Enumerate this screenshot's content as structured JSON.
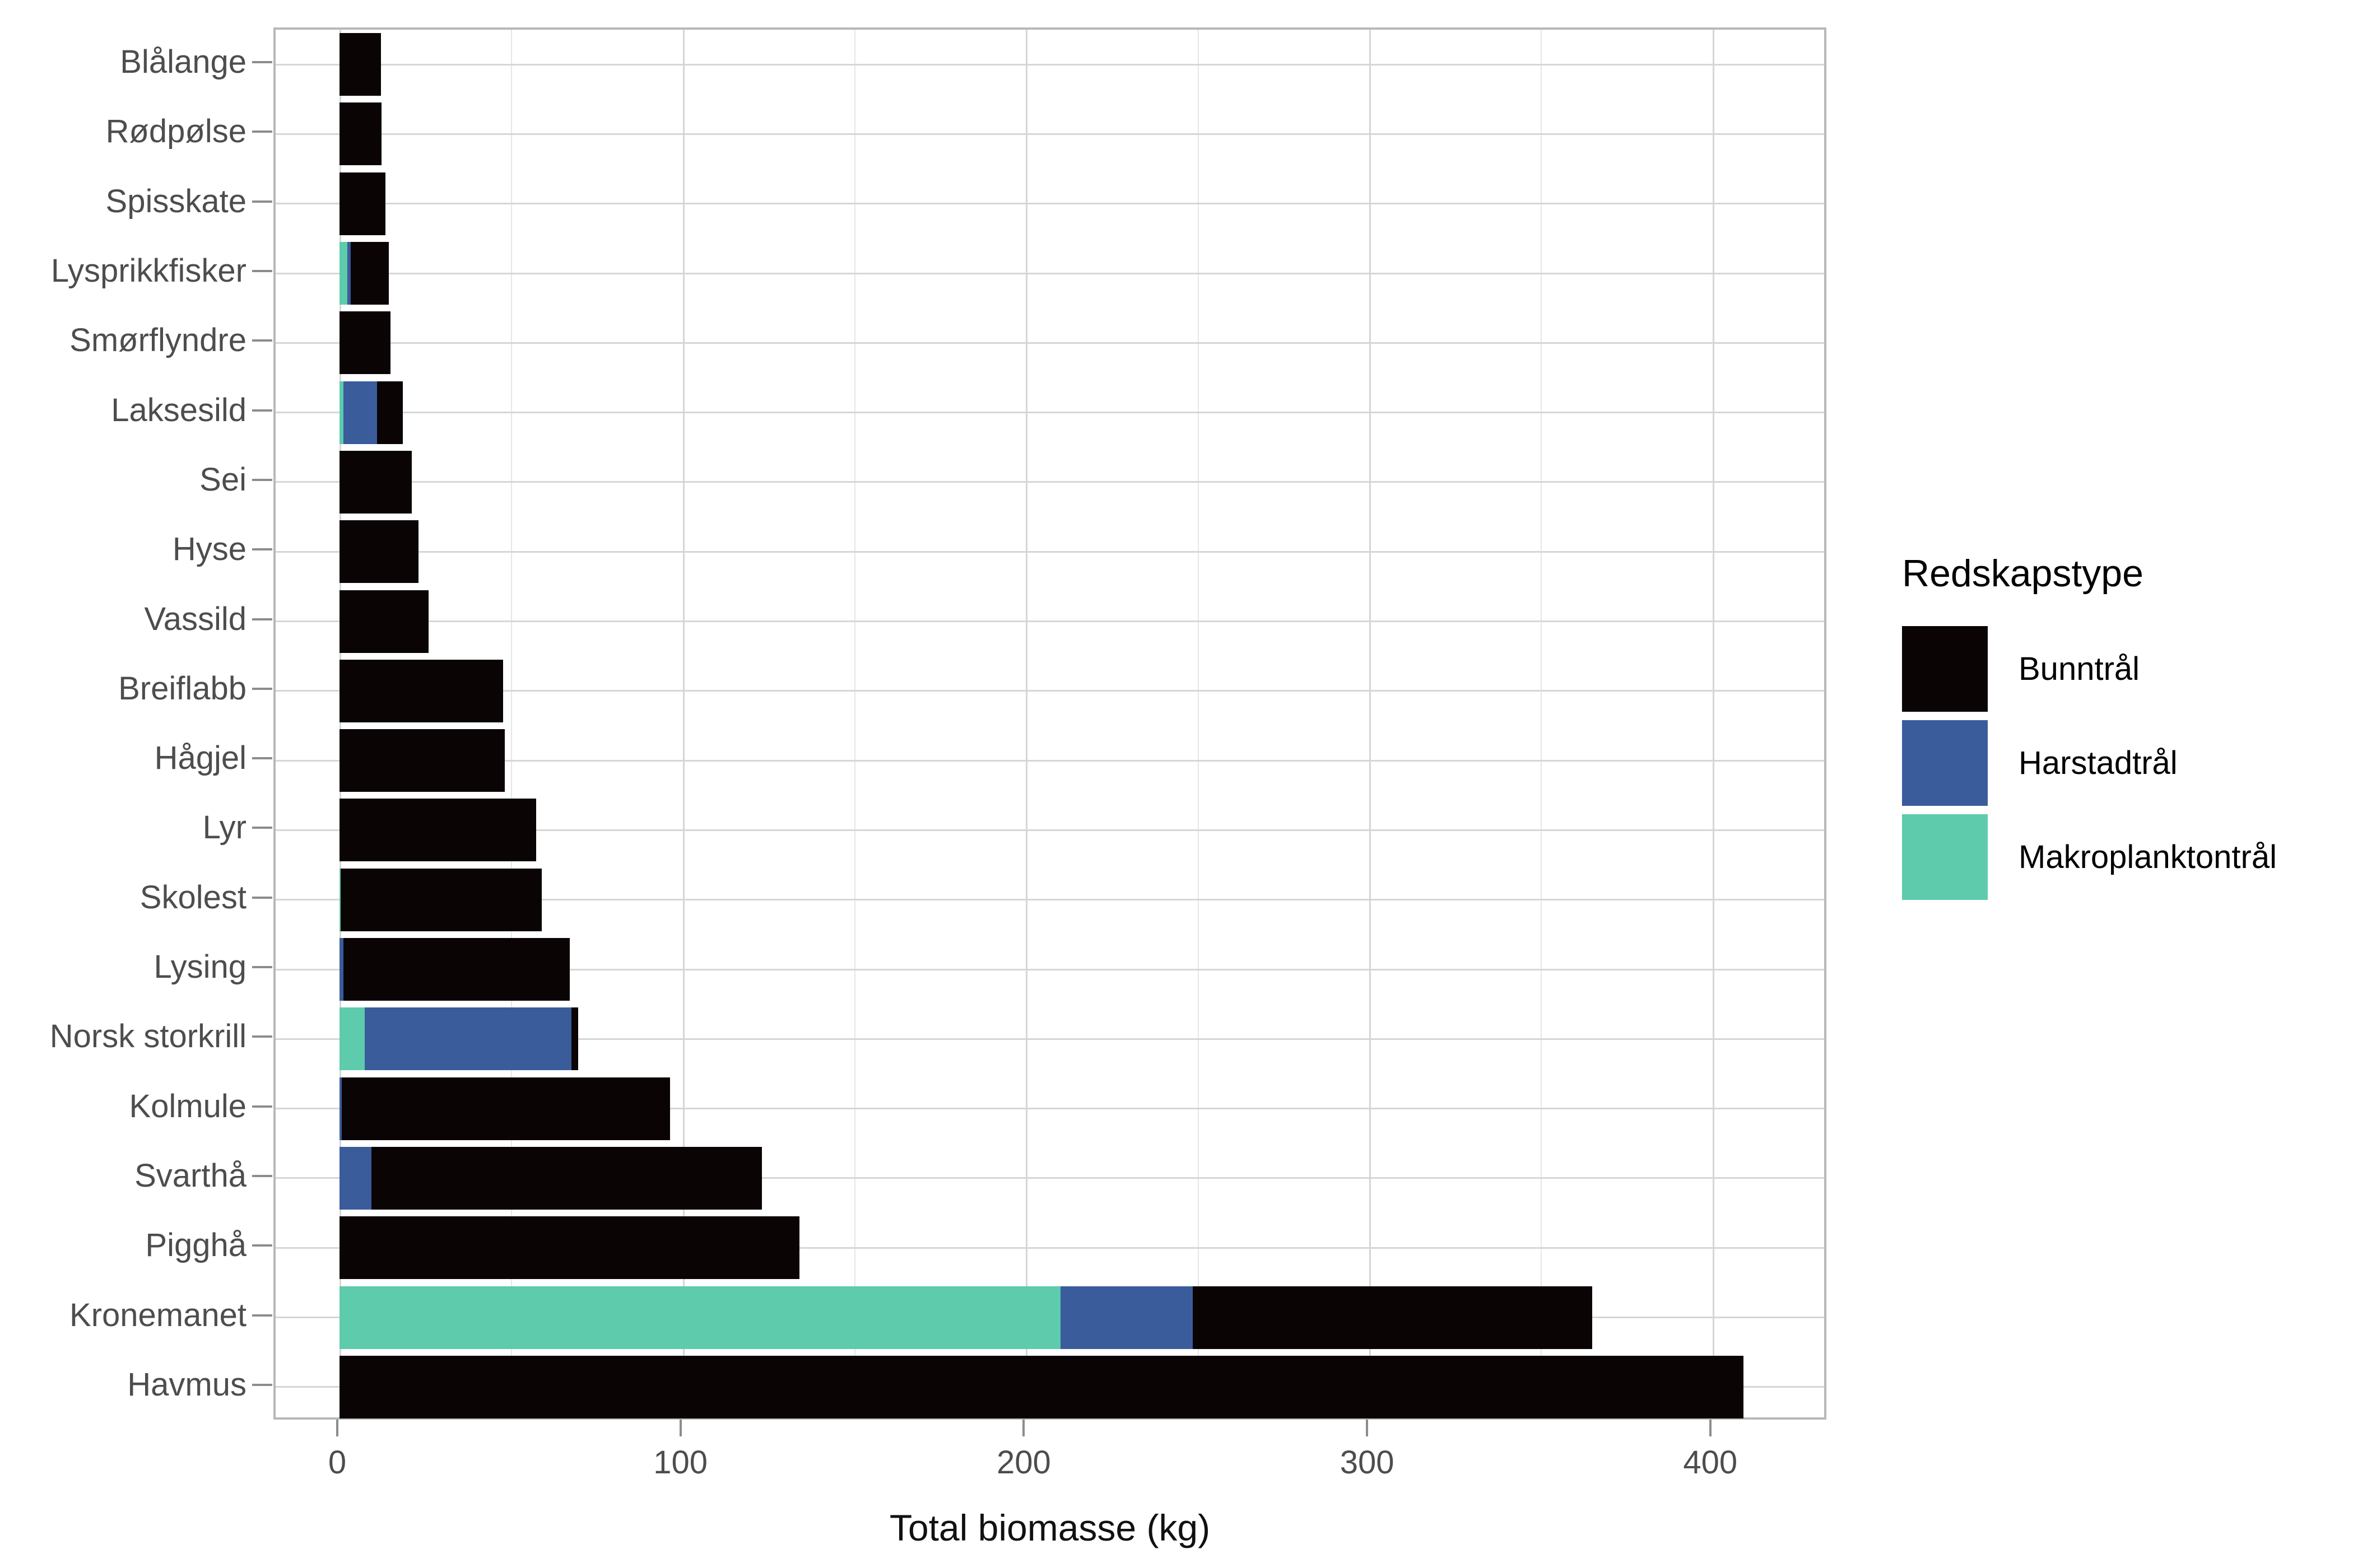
{
  "chart_data": {
    "type": "bar",
    "orientation": "horizontal",
    "stacked": true,
    "title": "",
    "xlabel": "Total biomasse (kg)",
    "ylabel": "",
    "x_ticks": [
      0,
      100,
      200,
      300,
      400
    ],
    "x_minor_gridlines": [
      50,
      150,
      250,
      350
    ],
    "xlim": [
      -18.6,
      432
    ],
    "grid": "on",
    "legend_position": "right",
    "legend_title": "Redskapstype",
    "categories": [
      "Blålange",
      "Rødpølse",
      "Spisskate",
      "Lysprikkfisker",
      "Smørflyndre",
      "Laksesild",
      "Sei",
      "Hyse",
      "Vassild",
      "Breiflabb",
      "Hågjel",
      "Lyr",
      "Skolest",
      "Lysing",
      "Norsk storkrill",
      "Kolmule",
      "Svarthå",
      "Pigghå",
      "Kronemanet",
      "Havmus"
    ],
    "series": [
      {
        "name": "Bunntrål",
        "color": "#0a0405",
        "values": [
          12,
          12.3,
          13.4,
          11.1,
          14.8,
          7.5,
          21,
          23,
          26,
          47.7,
          48.1,
          57.3,
          58.6,
          65.9,
          1.9,
          95.6,
          113.7,
          134,
          116.5,
          409
        ]
      },
      {
        "name": "Harstadtrål",
        "color": "#3a5c9b",
        "values": [
          0,
          0,
          0,
          0.9,
          0,
          9.7,
          0,
          0,
          0,
          0,
          0,
          0,
          0,
          1.1,
          60.2,
          0.7,
          9.3,
          0,
          38.5,
          0
        ]
      },
      {
        "name": "Makroplanktontrål",
        "color": "#5dcbac",
        "values": [
          0,
          0,
          0,
          2.3,
          0,
          1.2,
          0,
          0,
          0,
          0,
          0,
          0,
          0.4,
          0,
          7.4,
          0,
          0,
          0,
          210,
          0
        ]
      }
    ],
    "stack_order_from_axis": [
      "Makroplanktontrål",
      "Harstadtrål",
      "Bunntrål"
    ],
    "totals": [
      12,
      12.3,
      13.4,
      14.3,
      14.8,
      18.4,
      21,
      23,
      26,
      47.7,
      48.1,
      57.3,
      59,
      67,
      69.5,
      96.3,
      123,
      134,
      365,
      409
    ]
  },
  "colors": {
    "major_grid": "#d6d6d6",
    "minor_grid": "#e7e7e7",
    "panel_border": "#b8b8b8",
    "tick": "#8c8c8c",
    "axis_text": "#4d4d4d"
  }
}
